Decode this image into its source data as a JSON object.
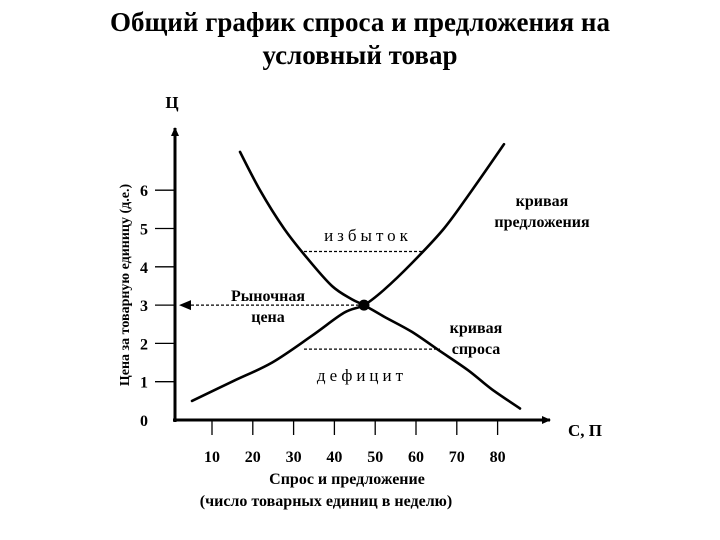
{
  "chart_data": {
    "type": "line",
    "title_line1": "Общий график спроса и предложения на",
    "title_line2": "условный товар",
    "ylabel": "Цена за товарную единицу (д.е.)",
    "y_axis_letter": "Ц",
    "x_axis_letter": "С, П",
    "xlabel_line1": "Спрос и предложение",
    "xlabel_line2": "(число товарных единиц в неделю)",
    "x_ticks": [
      "10",
      "20",
      "30",
      "40",
      "50",
      "60",
      "70",
      "80"
    ],
    "y_ticks": [
      "0",
      "1",
      "2",
      "3",
      "4",
      "5",
      "6"
    ],
    "ylim": [
      0,
      6.8
    ],
    "series": [
      {
        "name": "кривая предложения",
        "x": [
          5,
          15,
          25,
          35,
          43,
          48,
          53,
          60,
          68,
          75,
          83
        ],
        "y": [
          0.5,
          1.0,
          1.5,
          2.2,
          2.8,
          3.0,
          3.4,
          4.1,
          5.0,
          6.0,
          7.2
        ]
      },
      {
        "name": "кривая спроса",
        "x": [
          17,
          22,
          28,
          34,
          40,
          45,
          48,
          53,
          60,
          67,
          74,
          80,
          87
        ],
        "y": [
          7.0,
          6.0,
          5.0,
          4.2,
          3.5,
          3.15,
          3.0,
          2.7,
          2.3,
          1.8,
          1.3,
          0.8,
          0.3
        ]
      }
    ],
    "equilibrium": {
      "x": 48,
      "y": 3.0
    },
    "surplus": {
      "label": "избыток",
      "y": 4.4,
      "x_from": 33,
      "x_to": 63
    },
    "deficit": {
      "label": "дефицит",
      "y": 1.85,
      "x_from": 33,
      "x_to": 67
    },
    "market_price_label": [
      "Рыночная",
      "цена"
    ],
    "supply_label": [
      "кривая",
      "предложения"
    ],
    "demand_label": [
      "кривая",
      "спроса"
    ]
  }
}
